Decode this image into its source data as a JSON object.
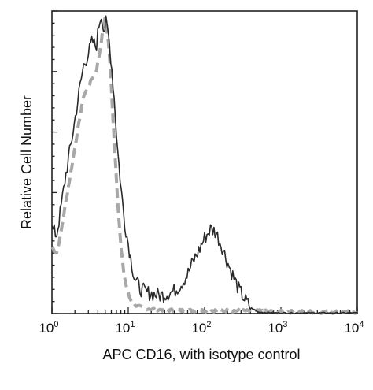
{
  "chart_data": {
    "type": "line",
    "title": "",
    "xlabel": "APC CD16, with isotype control",
    "ylabel": "Relative Cell Number",
    "x_scale": "log",
    "xlim": [
      1,
      10000
    ],
    "ylim": [
      0,
      1
    ],
    "grid": false,
    "legend": "none",
    "x_ticks": [
      {
        "base": "10",
        "exp": "0",
        "value": 1
      },
      {
        "base": "10",
        "exp": "1",
        "value": 10
      },
      {
        "base": "10",
        "exp": "2",
        "value": 100
      },
      {
        "base": "10",
        "exp": "3",
        "value": 1000
      },
      {
        "base": "10",
        "exp": "4",
        "value": 10000
      }
    ],
    "series": [
      {
        "color": "#2a2a2a",
        "style": "solid",
        "x": [
          1.0,
          1.15,
          1.3,
          1.5,
          1.75,
          2.0,
          2.3,
          2.6,
          3.0,
          3.4,
          3.8,
          4.2,
          4.5,
          4.8,
          5.1,
          5.5,
          6.0,
          6.6,
          7.2,
          8.0,
          9.0,
          10.5,
          12.0,
          14.0,
          17.0,
          21.0,
          26.0,
          32.0,
          40.0,
          50.0,
          60.0,
          70.0,
          85.0,
          100.0,
          120.0,
          140.0,
          170.0,
          200.0,
          240.0,
          280.0,
          330.0,
          400.0,
          500.0,
          700.0,
          1000.0,
          2000.0,
          5000.0,
          10000.0
        ],
        "y": [
          0.28,
          0.26,
          0.34,
          0.45,
          0.55,
          0.64,
          0.74,
          0.82,
          0.86,
          0.9,
          0.88,
          0.97,
          0.99,
          0.93,
          0.96,
          0.92,
          0.83,
          0.7,
          0.55,
          0.42,
          0.3,
          0.2,
          0.12,
          0.085,
          0.07,
          0.065,
          0.06,
          0.065,
          0.075,
          0.1,
          0.13,
          0.17,
          0.21,
          0.25,
          0.28,
          0.27,
          0.22,
          0.17,
          0.12,
          0.08,
          0.05,
          0.02,
          0.005,
          0.003,
          0.002,
          0.002,
          0.002,
          0.002
        ]
      },
      {
        "color": "#a8a8a8",
        "style": "dashed",
        "x": [
          1.0,
          1.15,
          1.3,
          1.5,
          1.75,
          2.0,
          2.3,
          2.6,
          3.0,
          3.4,
          3.8,
          4.2,
          4.6,
          5.0,
          5.4,
          5.8,
          6.2,
          6.8,
          7.4,
          8.0,
          8.8,
          9.6,
          10.5,
          11.5,
          13.0,
          15.0,
          20.0,
          30.0,
          50.0,
          100.0,
          200.0,
          500.0,
          1000.0,
          10000.0
        ],
        "y": [
          0.22,
          0.2,
          0.26,
          0.36,
          0.46,
          0.55,
          0.64,
          0.72,
          0.75,
          0.78,
          0.8,
          0.86,
          0.93,
          0.98,
          0.92,
          0.82,
          0.68,
          0.5,
          0.34,
          0.22,
          0.13,
          0.08,
          0.05,
          0.035,
          0.025,
          0.02,
          0.015,
          0.012,
          0.01,
          0.01,
          0.01,
          0.008,
          0.006,
          0.005
        ]
      }
    ]
  }
}
